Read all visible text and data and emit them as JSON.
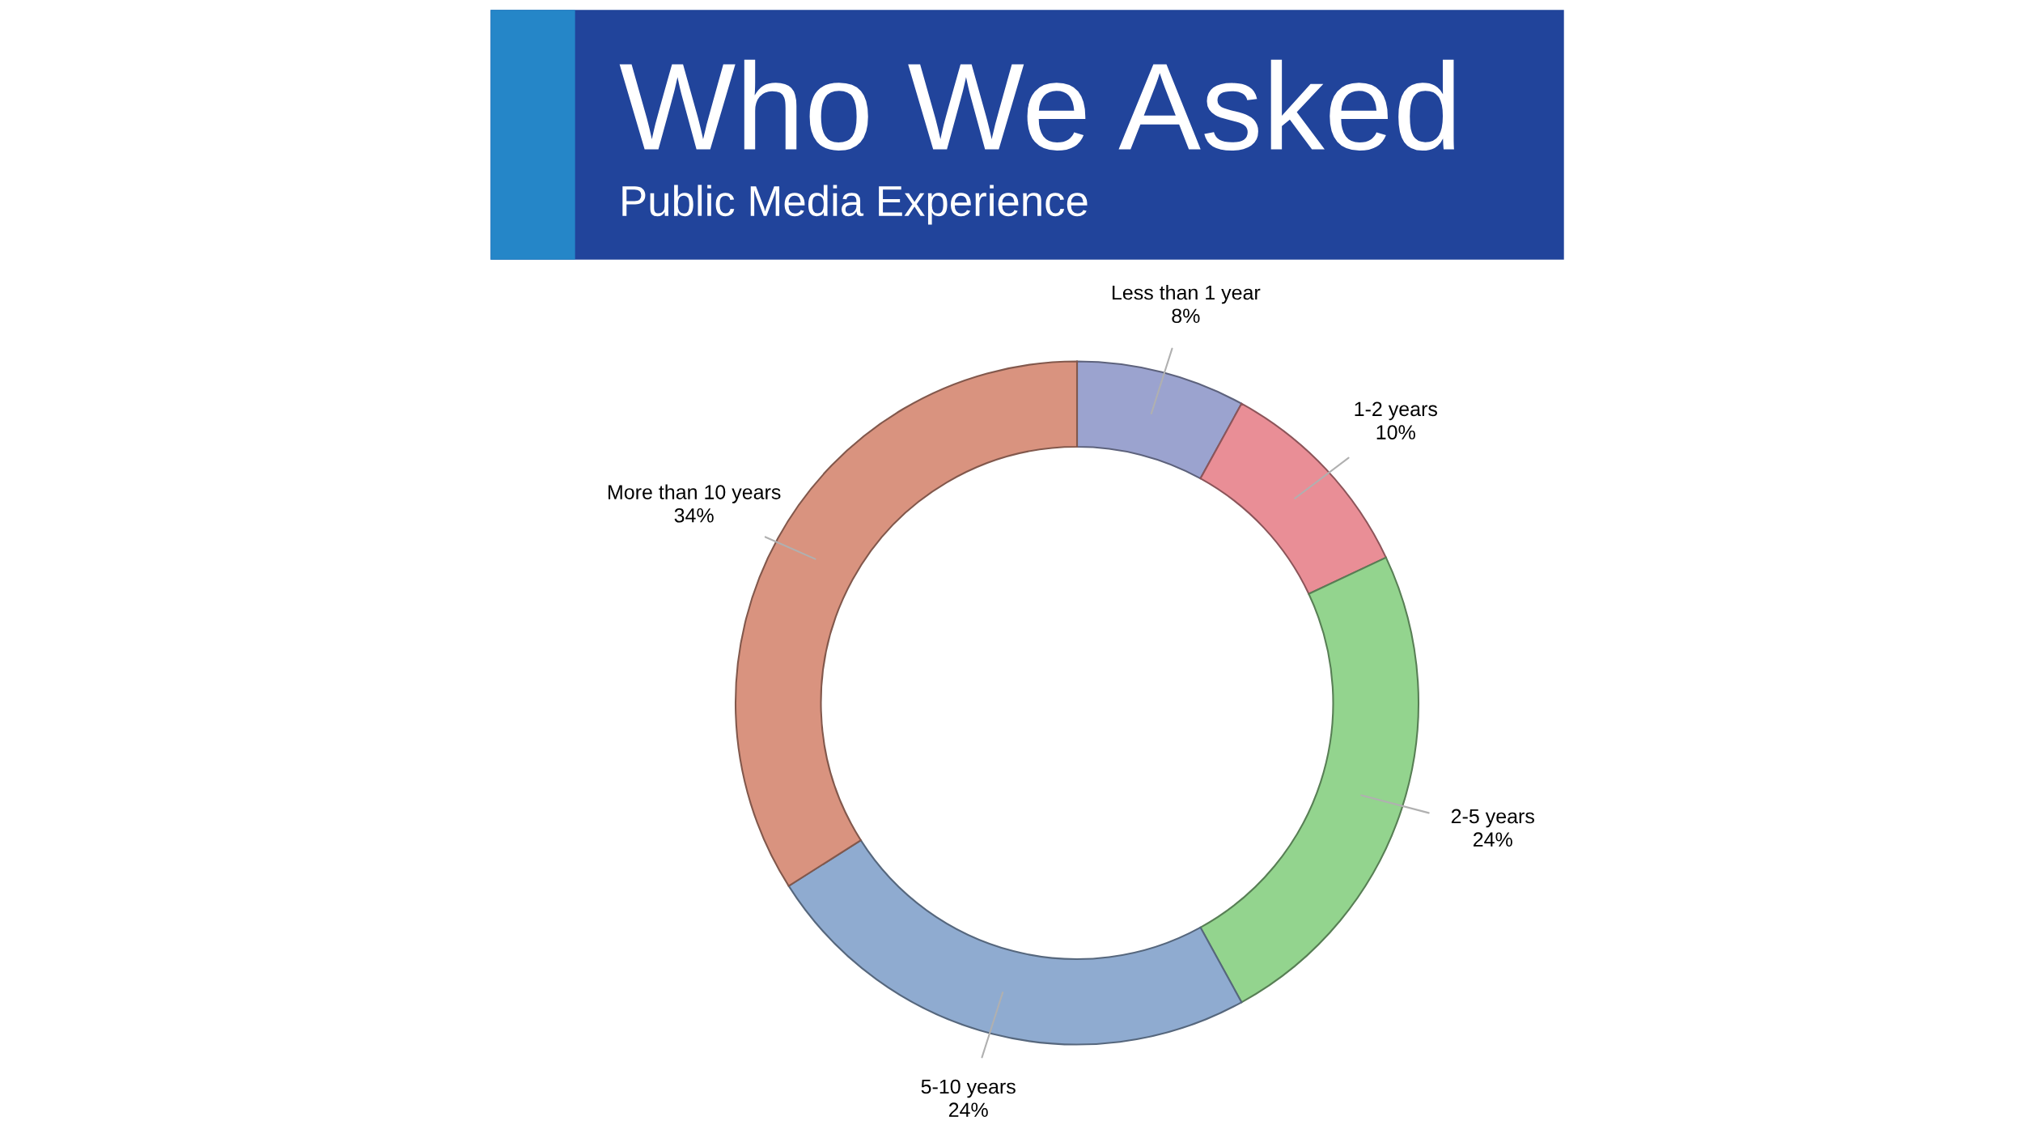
{
  "chart_data": {
    "type": "donut",
    "title": "Who We Asked",
    "subtitle": "Public Media Experience",
    "categories": [
      "Less than 1 year",
      "1-2 years",
      "2-5 years",
      "5-10 years",
      "More than 10 years"
    ],
    "values": [
      8,
      10,
      24,
      24,
      34
    ],
    "value_labels": [
      "8%",
      "10%",
      "24%",
      "24%",
      "34%"
    ],
    "colors": [
      "#9ba3cf",
      "#e98e96",
      "#93d48e",
      "#8fabd0",
      "#d9937f"
    ]
  }
}
